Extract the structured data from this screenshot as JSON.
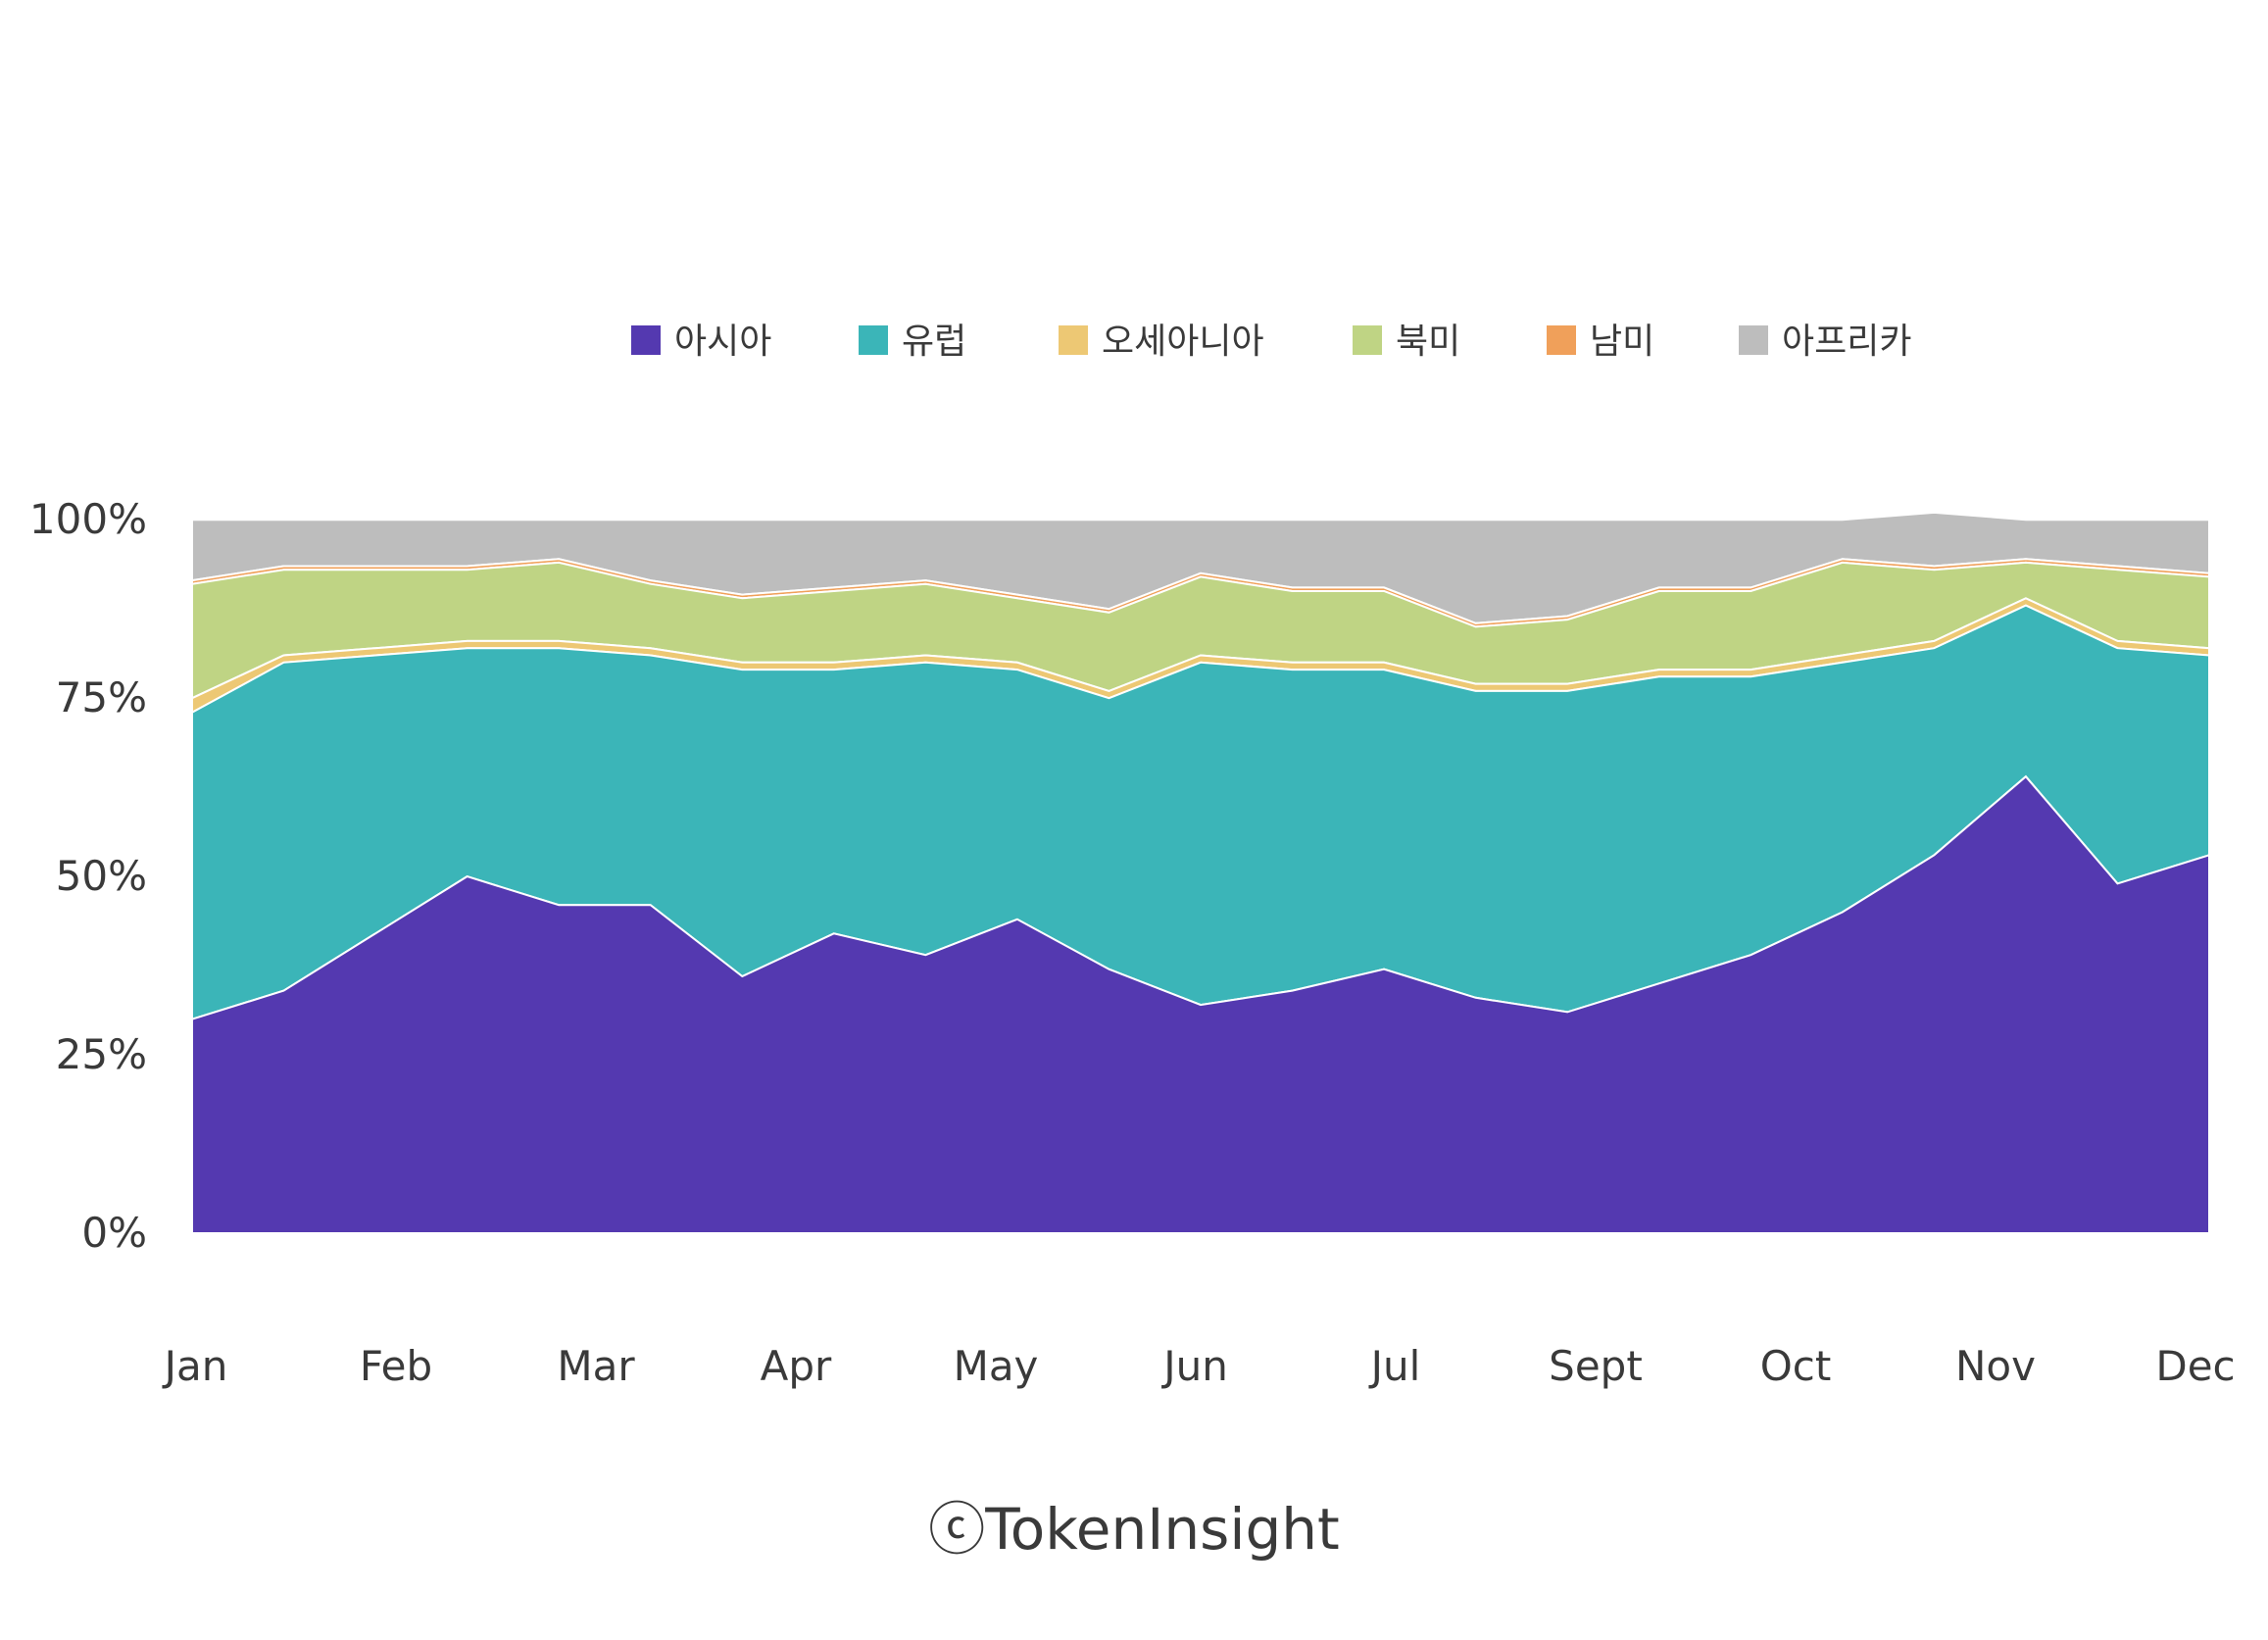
{
  "chart_data": {
    "type": "area",
    "stacked": true,
    "normalized": true,
    "legend_position": "top",
    "grid": false,
    "x_labels": [
      "Jan",
      "Feb",
      "Mar",
      "Apr",
      "May",
      "Jun",
      "Jul",
      "Sept",
      "Oct",
      "Nov",
      "Dec"
    ],
    "y_ticks": [
      "0%",
      "25%",
      "50%",
      "75%",
      "100%"
    ],
    "ylim": [
      0,
      100
    ],
    "x": [
      "Jan",
      "Jan-mid",
      "Feb",
      "Feb-mid",
      "Mar",
      "Mar-mid",
      "Apr",
      "Apr-mid",
      "May",
      "May-mid",
      "Jun",
      "Jun-mid",
      "Jul",
      "Jul-mid",
      "Aug",
      "Aug-mid",
      "Sept",
      "Sept-mid",
      "Oct",
      "Oct-mid",
      "Nov",
      "Nov-mid",
      "Dec"
    ],
    "series": [
      {
        "name": "아시아",
        "color": "#5439b0",
        "values": [
          30,
          34,
          42,
          50,
          46,
          46,
          36,
          42,
          39,
          44,
          37,
          32,
          34,
          37,
          33,
          31,
          35,
          39,
          45,
          53,
          64,
          49,
          53
        ]
      },
      {
        "name": "유럽",
        "color": "#3bb5b8",
        "values": [
          43,
          46,
          39,
          32,
          36,
          35,
          43,
          37,
          41,
          35,
          38,
          48,
          45,
          42,
          43,
          45,
          43,
          39,
          35,
          29,
          24,
          33,
          28
        ]
      },
      {
        "name": "오세아니아",
        "color": "#edc874",
        "values": [
          2,
          1,
          1,
          1,
          1,
          1,
          1,
          1,
          1,
          1,
          1,
          1,
          1,
          1,
          1,
          1,
          1,
          1,
          1,
          1,
          1,
          1,
          1
        ]
      },
      {
        "name": "북미",
        "color": "#bfd484",
        "values": [
          16,
          12,
          11,
          10,
          11,
          9,
          9,
          10,
          10,
          9,
          11,
          11,
          10,
          10,
          8,
          9,
          11,
          11,
          13,
          10,
          5,
          10,
          10
        ]
      },
      {
        "name": "남미",
        "color": "#f0a05a",
        "values": [
          0.5,
          0.5,
          0.5,
          0.5,
          0.5,
          0.5,
          0.5,
          0.5,
          0.5,
          0.5,
          0.5,
          0.5,
          0.5,
          0.5,
          0.5,
          0.5,
          0.5,
          0.5,
          0.5,
          0.5,
          0.5,
          0.5,
          0.5
        ]
      },
      {
        "name": "아프리카",
        "color": "#bdbdbd",
        "values": [
          8.5,
          6.5,
          6.5,
          6.5,
          5.5,
          8.5,
          10.5,
          9.5,
          8.5,
          10.5,
          12.5,
          7.5,
          9.5,
          9.5,
          14.5,
          13.5,
          9.5,
          9.5,
          5.5,
          7.5,
          5.5,
          6.5,
          7.5
        ]
      }
    ]
  },
  "credit": "ⓒTokenInsight"
}
